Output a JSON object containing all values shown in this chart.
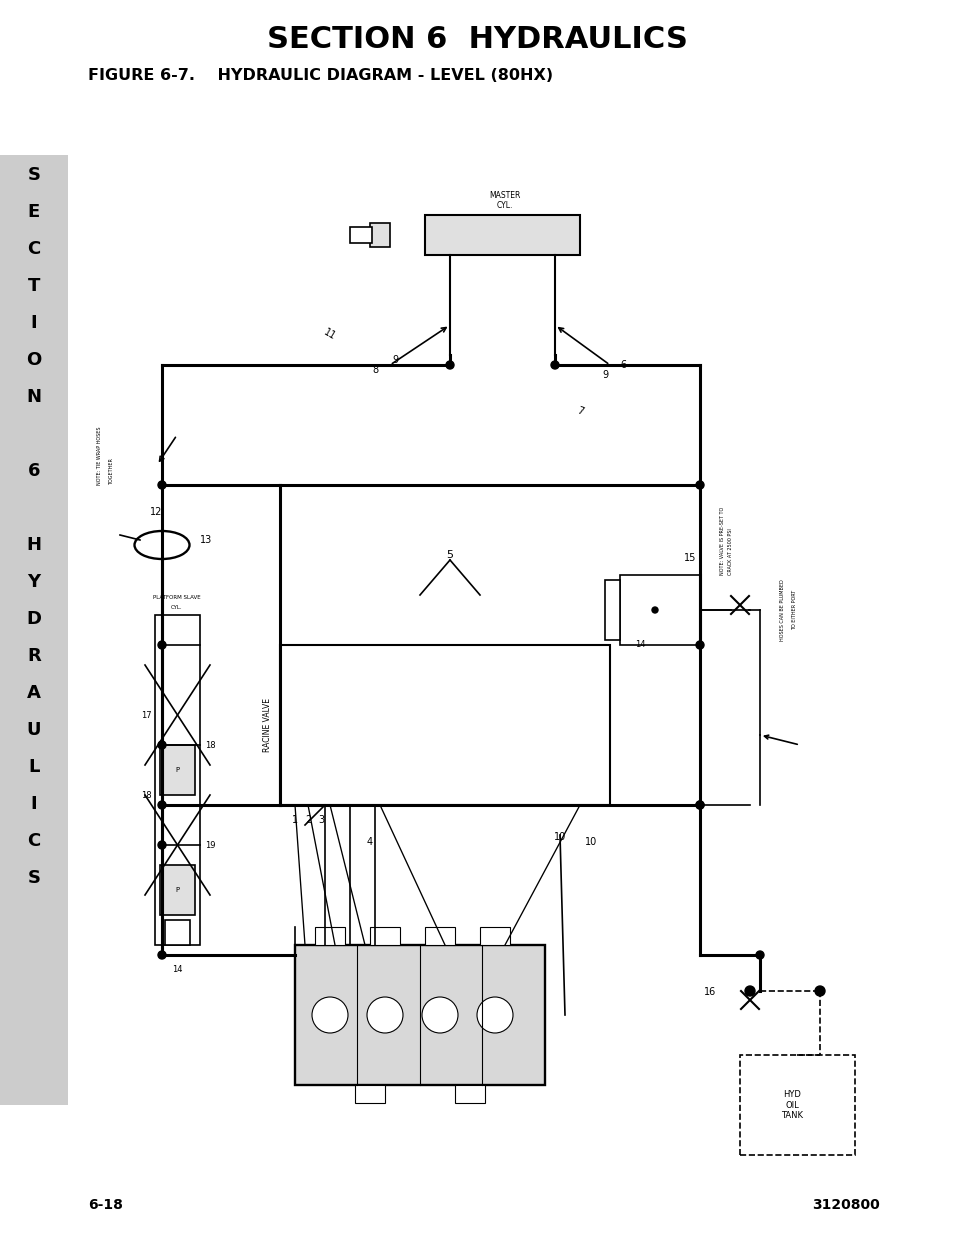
{
  "title": "SECTION 6  HYDRAULICS",
  "figure_label": "FIGURE 6-7.    HYDRAULIC DIAGRAM - LEVEL (80HX)",
  "page_left": "6-18",
  "page_right": "3120800",
  "sidebar_letters": [
    "S",
    "E",
    "C",
    "T",
    "I",
    "O",
    "N",
    " ",
    "6",
    " ",
    "H",
    "Y",
    "D",
    "R",
    "A",
    "U",
    "L",
    "I",
    "C",
    "S"
  ],
  "sidebar_bg": "#cccccc",
  "bg_color": "#ffffff",
  "title_fontsize": 22,
  "label_fontsize": 11.5,
  "lw": 1.2,
  "lw_thick": 2.2
}
